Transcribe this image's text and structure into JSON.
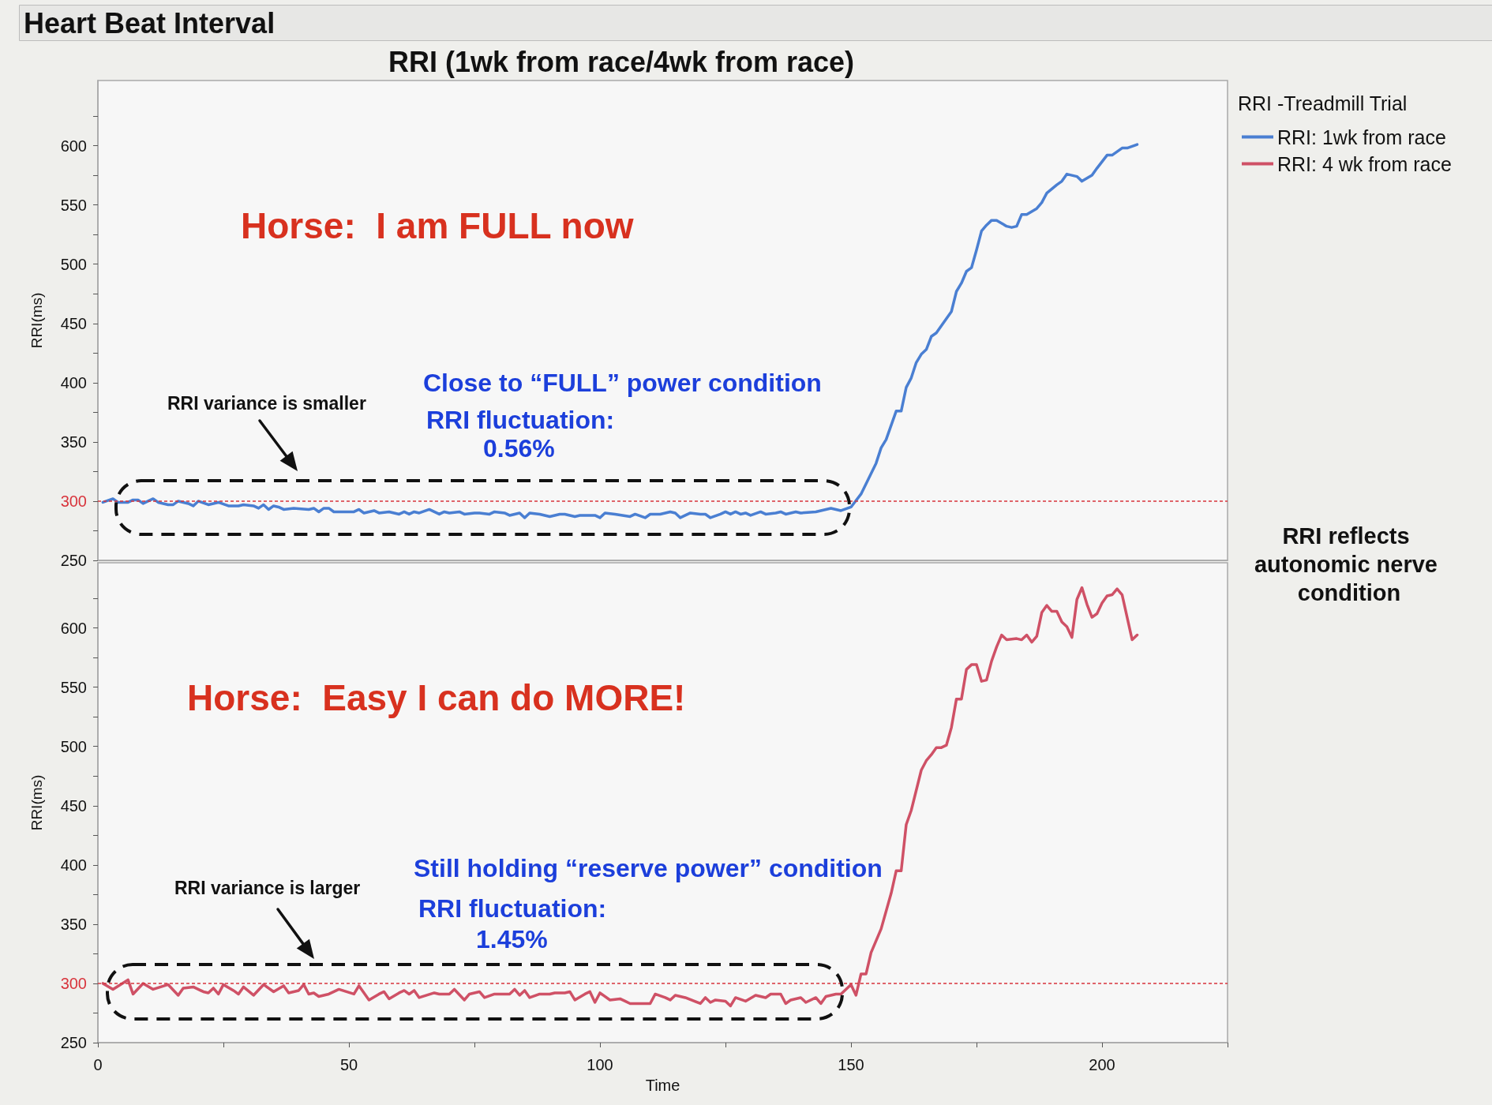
{
  "chart_data": [
    {
      "type": "line",
      "title": "Heart Beat Interval",
      "subtitle": "RRI (1wk from race/4wk from race)",
      "ylabel": "RRI(ms)",
      "legend_title": "RRI -Treadmill Trial",
      "legend": "top right",
      "marker": "none",
      "tick_labels": "y",
      "xlim": [
        0,
        225
      ],
      "ylim": [
        250,
        655
      ],
      "yticks": [
        250,
        {
          "value": 275,
          "label": null
        },
        300,
        {
          "value": 325,
          "label": null
        },
        350,
        {
          "value": 375,
          "label": null
        },
        400,
        {
          "value": 425,
          "label": null
        },
        450,
        {
          "value": 475,
          "label": null
        },
        500,
        {
          "value": 525,
          "label": null
        },
        550,
        {
          "value": 575,
          "label": null
        },
        600,
        {
          "value": 625,
          "label": null
        }
      ],
      "ref_lines": [
        {
          "axis": "y",
          "value": 300,
          "color": "#d8343c",
          "line_style": "dotted"
        }
      ],
      "annotations": [
        "Horse:  I am FULL now",
        "RRI variance is smaller",
        "Close to “FULL” power condition",
        "RRI fluctuation:",
        "0.56%",
        "RRI reflects autonomic nerve condition"
      ],
      "x": [
        1,
        3,
        4,
        6,
        7,
        8,
        9,
        11,
        12,
        14,
        15,
        16,
        18,
        19,
        20,
        22,
        24,
        26,
        28,
        29,
        31,
        32,
        33,
        34,
        35,
        36,
        37,
        39,
        42,
        43,
        44,
        45,
        46,
        47,
        49,
        51,
        52,
        53,
        55,
        56,
        58,
        60,
        61,
        62,
        63,
        64,
        66,
        68,
        69,
        70,
        72,
        73,
        75,
        76,
        78,
        79,
        81,
        82,
        84,
        85,
        86,
        88,
        90,
        92,
        93,
        95,
        96,
        97,
        99,
        100,
        101,
        103,
        106,
        107,
        109,
        110,
        112,
        114,
        115,
        116,
        118,
        120,
        121,
        122,
        124,
        125,
        126,
        127,
        128,
        129,
        130,
        132,
        133,
        135,
        136,
        137,
        139,
        140,
        143,
        145,
        146,
        148,
        150,
        152,
        155,
        156,
        157,
        159,
        160,
        161,
        162,
        163,
        164,
        165,
        166,
        167,
        168,
        169,
        170,
        171,
        172,
        173,
        174,
        175,
        176,
        177,
        178,
        179,
        181,
        182,
        183,
        184,
        185,
        187,
        188,
        189,
        191,
        192,
        193,
        195,
        196,
        198,
        199,
        201,
        202,
        204,
        205,
        207
      ],
      "series": [
        {
          "name": "RRI: 1wk from race",
          "color": "#4a7fd2",
          "values": [
            299,
            302,
            299,
            299,
            301,
            301,
            298,
            302,
            299,
            297,
            297,
            300,
            298,
            296,
            300,
            297,
            299,
            296,
            296,
            297,
            296,
            294,
            297,
            293,
            296,
            295,
            293,
            294,
            293,
            294,
            291,
            294,
            294,
            291,
            291,
            291,
            293,
            290,
            292,
            290,
            291,
            289,
            291,
            289,
            291,
            290,
            293,
            289,
            291,
            290,
            291,
            289,
            290,
            290,
            289,
            291,
            290,
            288,
            290,
            286,
            290,
            289,
            287,
            289,
            289,
            287,
            288,
            288,
            288,
            286,
            290,
            289,
            287,
            289,
            286,
            289,
            289,
            291,
            290,
            286,
            290,
            289,
            289,
            286,
            289,
            291,
            289,
            291,
            289,
            290,
            288,
            291,
            289,
            290,
            291,
            289,
            291,
            290,
            291,
            293,
            294,
            292,
            295,
            306,
            332,
            345,
            352,
            376,
            376,
            396,
            404,
            417,
            424,
            428,
            439,
            442,
            448,
            454,
            460,
            477,
            484,
            494,
            497,
            512,
            528,
            533,
            537,
            537,
            532,
            531,
            532,
            542,
            542,
            547,
            552,
            560,
            567,
            570,
            576,
            574,
            570,
            575,
            581,
            592,
            592,
            598,
            598,
            601
          ]
        }
      ]
    },
    {
      "type": "line",
      "xlabel": "Time",
      "ylabel": "RRI(ms)",
      "legend": "top right",
      "marker": "none",
      "xlim": [
        0,
        225
      ],
      "xticks": [
        0,
        {
          "value": 25,
          "label": null
        },
        50,
        {
          "value": 75,
          "label": null
        },
        100,
        {
          "value": 125,
          "label": null
        },
        150,
        {
          "value": 175,
          "label": null
        },
        200,
        {
          "value": 225,
          "label": null
        }
      ],
      "ylim": [
        250,
        655
      ],
      "yticks": [
        250,
        {
          "value": 275,
          "label": null
        },
        300,
        {
          "value": 325,
          "label": null
        },
        350,
        {
          "value": 375,
          "label": null
        },
        400,
        {
          "value": 425,
          "label": null
        },
        450,
        {
          "value": 475,
          "label": null
        },
        500,
        {
          "value": 525,
          "label": null
        },
        550,
        {
          "value": 575,
          "label": null
        },
        600,
        {
          "value": 625,
          "label": null
        }
      ],
      "ref_lines": [
        {
          "axis": "y",
          "value": 300,
          "color": "#d8343c",
          "line_style": "dotted"
        }
      ],
      "annotations": [
        "Horse:  Easy I can do MORE!",
        "RRI variance is larger",
        "Still holding “reserve power” condition",
        "RRI fluctuation:",
        "1.45%"
      ],
      "x": [
        1,
        3,
        6,
        7,
        9,
        11,
        14,
        16,
        17,
        19,
        21,
        22,
        23,
        24,
        25,
        27,
        28,
        29,
        31,
        33,
        35,
        37,
        38,
        40,
        41,
        42,
        43,
        44,
        46,
        48,
        51,
        52,
        54,
        56,
        57,
        58,
        60,
        61,
        62,
        63,
        64,
        67,
        68,
        70,
        71,
        73,
        74,
        76,
        77,
        79,
        82,
        83,
        84,
        85,
        86,
        88,
        90,
        91,
        93,
        94,
        95,
        97,
        98,
        99,
        100,
        102,
        104,
        105,
        106,
        110,
        111,
        113,
        114,
        115,
        117,
        120,
        121,
        122,
        123,
        125,
        126,
        127,
        129,
        131,
        133,
        134,
        136,
        137,
        138,
        140,
        141,
        143,
        144,
        145,
        147,
        148,
        149,
        150,
        151,
        152,
        153,
        154,
        156,
        158,
        159,
        160,
        161,
        162,
        164,
        165,
        166,
        167,
        168,
        169,
        170,
        171,
        172,
        173,
        174,
        175,
        176,
        177,
        178,
        179,
        180,
        181,
        183,
        184,
        185,
        186,
        187,
        188,
        189,
        190,
        191,
        192,
        193,
        194,
        195,
        196,
        197,
        198,
        199,
        200,
        201,
        202,
        203,
        204,
        206,
        207
      ],
      "series": [
        {
          "name": "RRI: 4 wk from race",
          "color": "#cf5166",
          "values": [
            300,
            295,
            303,
            291,
            300,
            295,
            299,
            290,
            296,
            297,
            293,
            292,
            296,
            291,
            299,
            294,
            291,
            297,
            290,
            299,
            293,
            298,
            292,
            294,
            299,
            291,
            292,
            289,
            291,
            295,
            291,
            298,
            286,
            291,
            293,
            287,
            292,
            294,
            291,
            294,
            288,
            292,
            291,
            291,
            295,
            286,
            291,
            293,
            288,
            291,
            291,
            295,
            290,
            294,
            288,
            291,
            291,
            292,
            292,
            293,
            286,
            291,
            293,
            284,
            292,
            286,
            287,
            285,
            283,
            283,
            291,
            288,
            286,
            290,
            288,
            283,
            288,
            284,
            286,
            285,
            281,
            288,
            285,
            290,
            288,
            291,
            291,
            283,
            286,
            288,
            284,
            288,
            283,
            289,
            291,
            291,
            295,
            299,
            290,
            308,
            308,
            326,
            346,
            376,
            395,
            395,
            434,
            446,
            480,
            488,
            493,
            499,
            499,
            501,
            516,
            540,
            540,
            565,
            569,
            569,
            555,
            556,
            572,
            584,
            594,
            590,
            591,
            590,
            594,
            588,
            593,
            613,
            619,
            614,
            614,
            605,
            601,
            592,
            624,
            634,
            620,
            609,
            612,
            621,
            627,
            628,
            633,
            628,
            590,
            594
          ]
        }
      ]
    }
  ]
}
